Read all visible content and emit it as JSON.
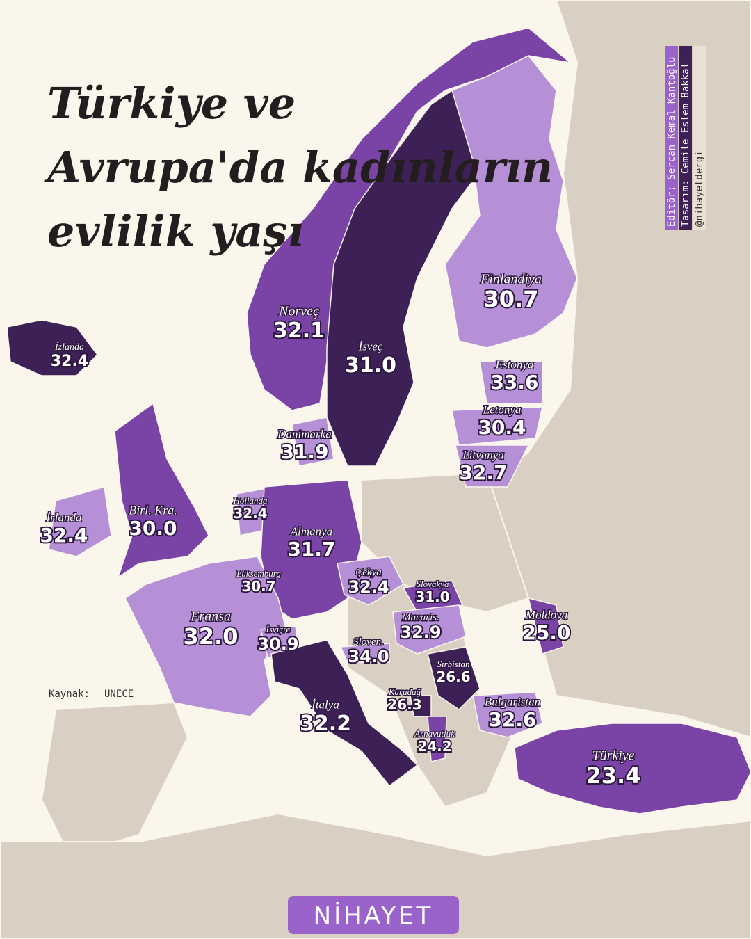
{
  "header": {
    "title": [
      "Türkiye ve",
      "Avrupa'da kadınların",
      "evlilik yaşı"
    ]
  },
  "credits": [
    "Editör: Sercan Kemal Kantoğlu",
    "Tasarım: Cemile Eslem Bakkal",
    "@nihayetdergi"
  ],
  "source": {
    "label": "Kaynak:",
    "name": "UNECE"
  },
  "logo": "NİHAYET",
  "map": {
    "names": [
      "Norveç",
      "İsveç",
      "Finlandiya",
      "İzlanda",
      "Estonya",
      "Letonya",
      "Litvanya",
      "Danimarka",
      "Birl. Kra.",
      "İrlanda",
      "Hollanda",
      "Almanya",
      "Lüksemburg",
      "Çekya",
      "Slovakya",
      "Fransa",
      "İsviçre",
      "Macaris.",
      "Moldova",
      "Sloven.",
      "Sırbistan",
      "Karadağ",
      "İtalya",
      "Bulgaristan",
      "Arnavutluk",
      "Türkiye"
    ],
    "values": [
      32.1,
      31,
      30.7,
      32.4,
      33.6,
      30.4,
      32.7,
      31.9,
      30,
      32.4,
      32.4,
      31.7,
      30.7,
      32.4,
      31,
      32,
      30.9,
      32.9,
      25,
      34,
      26.6,
      26.3,
      32.2,
      32.6,
      24.2,
      23.4
    ],
    "value_labels": [
      "32.1",
      "31.0",
      "30.7",
      "32.4",
      "33.6",
      "30.4",
      "32.7",
      "31.9",
      "30.0",
      "32.4",
      "32.4",
      "31.7",
      "30.7",
      "32.4",
      "31.0",
      "32.0",
      "30.9",
      "32.9",
      "25.0",
      "34.0",
      "26.6",
      "26.3",
      "32.2",
      "32.6",
      "24.2",
      "23.4"
    ],
    "colors": [
      "#7a44a6",
      "#3d2056",
      "#b690d6",
      "#3d2056",
      "#b690d6",
      "#b690d6",
      "#b690d6",
      "#b690d6",
      "#7a44a6",
      "#b690d6",
      "#b690d6",
      "#7a44a6",
      "#b690d6",
      "#b690d6",
      "#7a44a6",
      "#b690d6",
      "#b690d6",
      "#b690d6",
      "#7a44a6",
      "#b690d6",
      "#3d2056",
      "#3d2056",
      "#3d2056",
      "#b690d6",
      "#7a44a6",
      "#7a44a6"
    ]
  }
}
